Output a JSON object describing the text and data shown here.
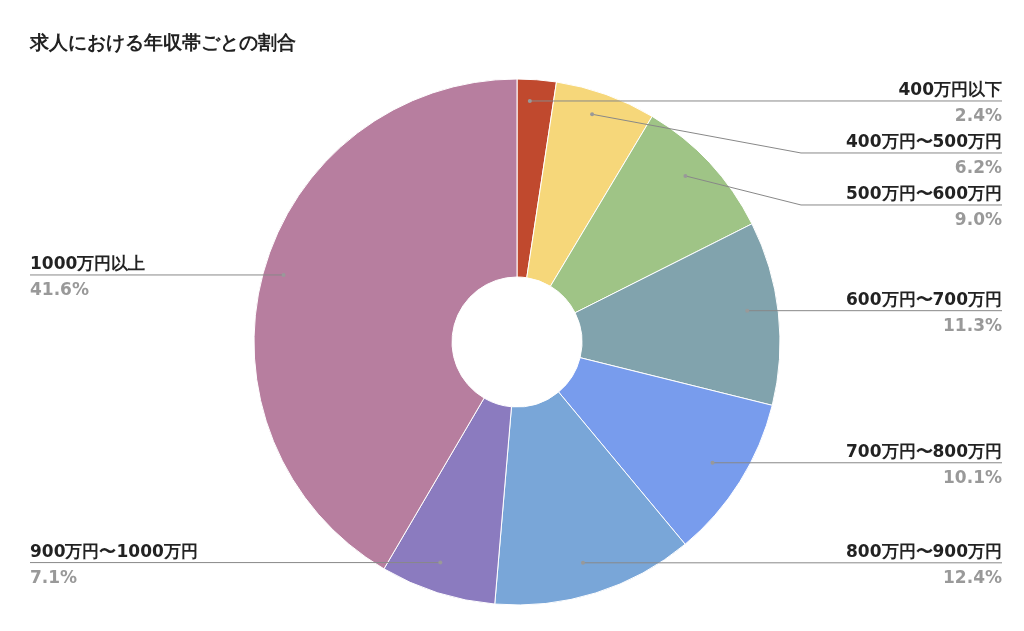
{
  "chart_data": {
    "type": "donut",
    "title": "求人における年収帯ごとの割合",
    "categories": [
      "400万円以下",
      "400万円〜500万円",
      "500万円〜600万円",
      "600万円〜700万円",
      "700万円〜800万円",
      "800万円〜900万円",
      "900万円〜1000万円",
      "1000万円以上"
    ],
    "values": [
      2.4,
      6.2,
      9.0,
      11.3,
      10.1,
      12.4,
      7.1,
      41.6
    ],
    "value_labels": [
      "2.4%",
      "6.2%",
      "9.0%",
      "11.3%",
      "10.1%",
      "12.4%",
      "7.1%",
      "41.6%"
    ],
    "colors": [
      "#c0492e",
      "#f6d77a",
      "#9fc486",
      "#81a3ad",
      "#789ced",
      "#79a6d8",
      "#8b7bbf",
      "#b77e9f"
    ]
  }
}
